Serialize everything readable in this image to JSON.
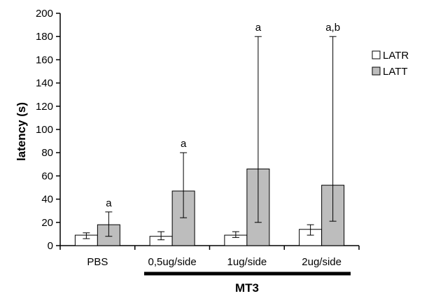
{
  "chart_data": {
    "type": "bar",
    "ylabel": "latency (s)",
    "xlabel": "",
    "ylim": [
      0,
      200
    ],
    "yticks": [
      0,
      20,
      40,
      60,
      80,
      100,
      120,
      140,
      160,
      180,
      200
    ],
    "categories": [
      "PBS",
      "0,5ug/side",
      "1ug/side",
      "2ug/side"
    ],
    "series": [
      {
        "name": "LATR",
        "color": "#ffffff",
        "values": [
          9,
          8,
          9,
          14
        ],
        "error_low": [
          6,
          5,
          7,
          9
        ],
        "error_high": [
          11,
          12,
          12,
          18
        ],
        "annotations": [
          "",
          "",
          "",
          ""
        ]
      },
      {
        "name": "LATT",
        "color": "#bdbdbd",
        "values": [
          18,
          47,
          66,
          52
        ],
        "error_low": [
          8,
          24,
          20,
          21
        ],
        "error_high": [
          29,
          80,
          180,
          180
        ],
        "annotations": [
          "a",
          "a",
          "a",
          "a,b"
        ]
      }
    ],
    "group_label": "MT3",
    "legend_position": "right",
    "grid": false
  }
}
